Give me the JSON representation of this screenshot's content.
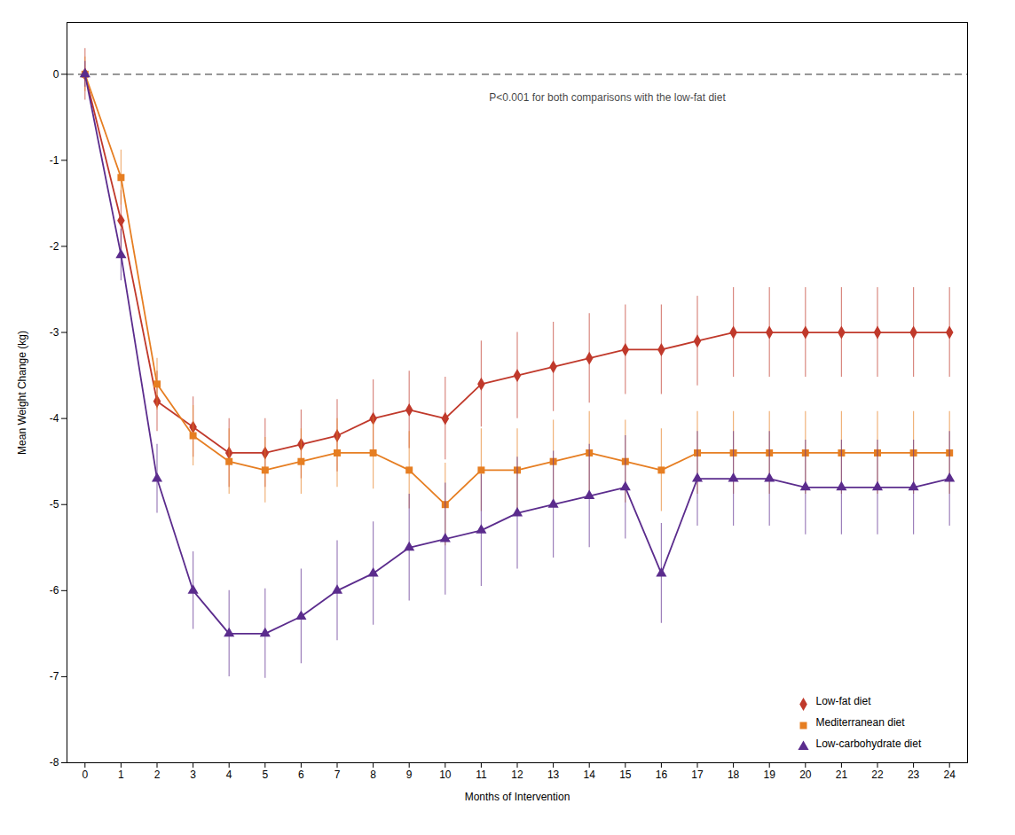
{
  "chart_data": {
    "type": "line",
    "xlabel": "Months of Intervention",
    "ylabel": "Mean Weight Change (kg)",
    "x": [
      0,
      1,
      2,
      3,
      4,
      5,
      6,
      7,
      8,
      9,
      10,
      11,
      12,
      13,
      14,
      15,
      16,
      17,
      18,
      19,
      20,
      21,
      22,
      23,
      24
    ],
    "series": [
      {
        "name": "Low-fat diet",
        "color": "#C0392B",
        "marker": "diamond",
        "line_style": "solid",
        "values": [
          0.0,
          -1.7,
          -3.8,
          -4.1,
          -4.4,
          -4.4,
          -4.3,
          -4.2,
          -4.0,
          -3.9,
          -4.0,
          -3.6,
          -3.5,
          -3.4,
          -3.3,
          -3.2,
          -3.2,
          -3.1,
          -3.0,
          -3.0,
          -3.0,
          -3.0,
          -3.0,
          -3.0,
          -3.0
        ],
        "errors": [
          0.3,
          0.35,
          0.35,
          0.35,
          0.4,
          0.4,
          0.4,
          0.42,
          0.45,
          0.45,
          0.48,
          0.5,
          0.5,
          0.52,
          0.52,
          0.52,
          0.52,
          0.52,
          0.52,
          0.52,
          0.52,
          0.52,
          0.52,
          0.52,
          0.52
        ]
      },
      {
        "name": "Mediterranean diet",
        "color": "#E67E22",
        "marker": "square",
        "line_style": "solid",
        "values": [
          0.0,
          -1.2,
          -3.6,
          -4.2,
          -4.5,
          -4.6,
          -4.5,
          -4.4,
          -4.4,
          -4.6,
          -5.0,
          -4.6,
          -4.6,
          -4.5,
          -4.4,
          -4.5,
          -4.6,
          -4.4,
          -4.4,
          -4.4,
          -4.4,
          -4.4,
          -4.4,
          -4.4,
          -4.4
        ],
        "errors": [
          0.2,
          0.32,
          0.3,
          0.35,
          0.38,
          0.38,
          0.38,
          0.4,
          0.42,
          0.45,
          0.48,
          0.48,
          0.48,
          0.48,
          0.48,
          0.48,
          0.48,
          0.48,
          0.48,
          0.48,
          0.48,
          0.48,
          0.48,
          0.48,
          0.48
        ]
      },
      {
        "name": "Low-carbohydrate diet",
        "color": "#5B2C8D",
        "marker": "triangle",
        "line_style": "solid",
        "values": [
          0.0,
          -2.1,
          -4.7,
          -6.0,
          -6.5,
          -6.5,
          -6.3,
          -6.0,
          -5.8,
          -5.5,
          -5.4,
          -5.3,
          -5.1,
          -5.0,
          -4.9,
          -4.8,
          -5.8,
          -4.7,
          -4.7,
          -4.7,
          -4.8,
          -4.8,
          -4.8,
          -4.8,
          -4.7
        ],
        "errors": [
          0.15,
          0.3,
          0.4,
          0.45,
          0.5,
          0.52,
          0.55,
          0.58,
          0.6,
          0.62,
          0.65,
          0.65,
          0.65,
          0.62,
          0.6,
          0.6,
          0.58,
          0.55,
          0.55,
          0.55,
          0.55,
          0.55,
          0.55,
          0.55,
          0.55
        ]
      }
    ],
    "xlim": [
      -0.5,
      24.5
    ],
    "xticks": [
      0,
      1,
      2,
      3,
      4,
      5,
      6,
      7,
      8,
      9,
      10,
      11,
      12,
      13,
      14,
      15,
      16,
      17,
      18,
      19,
      20,
      21,
      22,
      23,
      24
    ],
    "ylim": [
      -8.0,
      0.6
    ],
    "yticks": [
      0,
      -1,
      -2,
      -3,
      -4,
      -5,
      -6,
      -7,
      -8
    ],
    "reference_line": {
      "y": 0,
      "line_style": "dashed"
    },
    "annotations": [
      {
        "text": "P<0.001 for both comparisons with the low-fat diet",
        "x": 14.5,
        "y": -0.22
      }
    ],
    "legend": "lower right",
    "grid": false
  }
}
